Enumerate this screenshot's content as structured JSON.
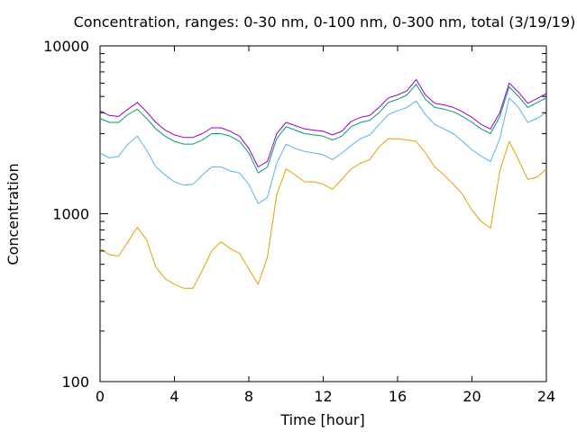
{
  "chart_data": {
    "type": "line",
    "title": "Concentration, ranges: 0-30 nm, 0-100 nm, 0-300 nm, total (3/19/19)",
    "xlabel": "Time [hour]",
    "ylabel": "Concentration",
    "xlim": [
      0,
      24
    ],
    "ylim": [
      100,
      10000
    ],
    "yscale": "log",
    "grid": false,
    "legend": "none",
    "x_ticks": [
      0,
      4,
      8,
      12,
      16,
      20,
      24
    ],
    "x_tick_labels": [
      "0",
      "4",
      "8",
      "12",
      "16",
      "20",
      "24"
    ],
    "y_ticks": [
      100,
      1000,
      10000
    ],
    "y_tick_labels": [
      "100",
      "1000",
      "10000"
    ],
    "series": [
      {
        "color": "#e69f00",
        "x": [
          0,
          0.5,
          1,
          1.5,
          2,
          2.5,
          3,
          3.5,
          4,
          4.5,
          5,
          5.5,
          6,
          6.5,
          7,
          7.5,
          8,
          8.5,
          9,
          9.5,
          10,
          10.5,
          11,
          11.5,
          12,
          12.5,
          13,
          13.5,
          14,
          14.5,
          15,
          15.5,
          16,
          16.5,
          17,
          17.5,
          18,
          18.5,
          19,
          19.5,
          20,
          20.5,
          21,
          21.5,
          22,
          22.5,
          23,
          23.5,
          24
        ],
        "y": [
          620,
          570,
          560,
          680,
          830,
          700,
          480,
          410,
          380,
          360,
          360,
          460,
          600,
          680,
          620,
          580,
          470,
          380,
          550,
          1300,
          1850,
          1700,
          1550,
          1550,
          1500,
          1400,
          1600,
          1850,
          2000,
          2100,
          2500,
          2800,
          2800,
          2750,
          2700,
          2300,
          1900,
          1700,
          1500,
          1300,
          1050,
          900,
          820,
          1800,
          2700,
          2100,
          1600,
          1650,
          1850
        ]
      },
      {
        "color": "#56b4e9",
        "x": [
          0,
          0.5,
          1,
          1.5,
          2,
          2.5,
          3,
          3.5,
          4,
          4.5,
          5,
          5.5,
          6,
          6.5,
          7,
          7.5,
          8,
          8.5,
          9,
          9.5,
          10,
          10.5,
          11,
          11.5,
          12,
          12.5,
          13,
          13.5,
          14,
          14.5,
          15,
          15.5,
          16,
          16.5,
          17,
          17.5,
          18,
          18.5,
          19,
          19.5,
          20,
          20.5,
          21,
          21.5,
          22,
          22.5,
          23,
          23.5,
          24
        ],
        "y": [
          2300,
          2150,
          2200,
          2600,
          2900,
          2400,
          1900,
          1700,
          1550,
          1480,
          1500,
          1700,
          1900,
          1900,
          1800,
          1750,
          1500,
          1150,
          1250,
          2000,
          2600,
          2450,
          2350,
          2300,
          2250,
          2100,
          2300,
          2550,
          2800,
          2950,
          3400,
          3900,
          4100,
          4300,
          4700,
          3900,
          3400,
          3200,
          3000,
          2700,
          2400,
          2200,
          2050,
          2800,
          4900,
          4300,
          3500,
          3700,
          4000
        ]
      },
      {
        "color": "#009e73",
        "x": [
          0,
          0.5,
          1,
          1.5,
          2,
          2.5,
          3,
          3.5,
          4,
          4.5,
          5,
          5.5,
          6,
          6.5,
          7,
          7.5,
          8,
          8.5,
          9,
          9.5,
          10,
          10.5,
          11,
          11.5,
          12,
          12.5,
          13,
          13.5,
          14,
          14.5,
          15,
          15.5,
          16,
          16.5,
          17,
          17.5,
          18,
          18.5,
          19,
          19.5,
          20,
          20.5,
          21,
          21.5,
          22,
          22.5,
          23,
          23.5,
          24
        ],
        "y": [
          3700,
          3500,
          3500,
          3900,
          4200,
          3700,
          3200,
          2900,
          2700,
          2600,
          2600,
          2750,
          3000,
          3000,
          2900,
          2700,
          2300,
          1750,
          1900,
          2800,
          3300,
          3150,
          3000,
          2950,
          2900,
          2750,
          2900,
          3300,
          3500,
          3600,
          4000,
          4600,
          4800,
          5100,
          5900,
          4800,
          4300,
          4200,
          4050,
          3800,
          3500,
          3200,
          3000,
          3800,
          5700,
          5000,
          4300,
          4600,
          4900
        ]
      },
      {
        "color": "#9400d3",
        "x": [
          0,
          0.5,
          1,
          1.5,
          2,
          2.5,
          3,
          3.5,
          4,
          4.5,
          5,
          5.5,
          6,
          6.5,
          7,
          7.5,
          8,
          8.5,
          9,
          9.5,
          10,
          10.5,
          11,
          11.5,
          12,
          12.5,
          13,
          13.5,
          14,
          14.5,
          15,
          15.5,
          16,
          16.5,
          17,
          17.5,
          18,
          18.5,
          19,
          19.5,
          20,
          20.5,
          21,
          21.5,
          22,
          22.5,
          23,
          23.5,
          24
        ],
        "y": [
          4100,
          3850,
          3800,
          4200,
          4600,
          4050,
          3500,
          3150,
          2950,
          2850,
          2850,
          3000,
          3250,
          3250,
          3100,
          2900,
          2450,
          1900,
          2050,
          3000,
          3500,
          3350,
          3200,
          3150,
          3100,
          2950,
          3100,
          3550,
          3750,
          3850,
          4300,
          4900,
          5100,
          5400,
          6300,
          5100,
          4550,
          4450,
          4300,
          4050,
          3750,
          3400,
          3200,
          4000,
          6000,
          5300,
          4550,
          4850,
          5200
        ]
      }
    ]
  }
}
